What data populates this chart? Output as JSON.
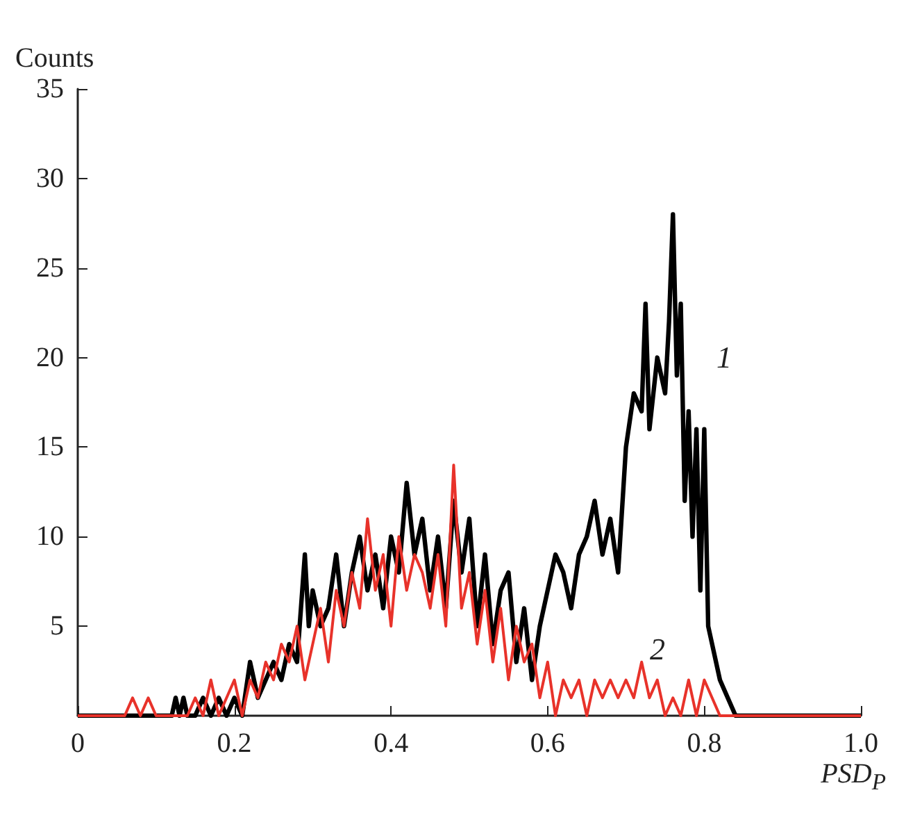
{
  "chart_data": {
    "type": "line",
    "xlabel": "PSD$_{P}$",
    "ylabel": "Counts",
    "xlim": [
      0,
      1
    ],
    "ylim": [
      0,
      35
    ],
    "xticks": [
      0,
      0.2,
      0.4,
      0.6,
      0.8,
      {
        "value": 1,
        "label": "1.0"
      }
    ],
    "yticks": [
      5,
      10,
      15,
      20,
      25,
      30,
      35
    ],
    "grid": false,
    "marker": "none",
    "line_style": "solid",
    "series": [
      {
        "color": "#000000",
        "x": [
          0,
          0.12,
          0.125,
          0.13,
          0.135,
          0.14,
          0.15,
          0.16,
          0.17,
          0.18,
          0.19,
          0.2,
          0.21,
          0.22,
          0.23,
          0.24,
          0.25,
          0.26,
          0.27,
          0.28,
          0.29,
          0.295,
          0.3,
          0.31,
          0.32,
          0.33,
          0.34,
          0.35,
          0.36,
          0.37,
          0.38,
          0.39,
          0.4,
          0.41,
          0.42,
          0.43,
          0.44,
          0.45,
          0.46,
          0.47,
          0.48,
          0.49,
          0.5,
          0.51,
          0.52,
          0.53,
          0.54,
          0.55,
          0.56,
          0.57,
          0.58,
          0.59,
          0.6,
          0.61,
          0.62,
          0.63,
          0.64,
          0.65,
          0.66,
          0.67,
          0.68,
          0.69,
          0.7,
          0.71,
          0.72,
          0.725,
          0.73,
          0.74,
          0.75,
          0.755,
          0.76,
          0.765,
          0.77,
          0.775,
          0.78,
          0.785,
          0.79,
          0.795,
          0.8,
          0.805,
          0.81,
          0.82,
          0.83,
          0.84,
          0.85,
          1.0
        ],
        "values": [
          0,
          0,
          1,
          0,
          1,
          0,
          0,
          1,
          0,
          1,
          0,
          1,
          0,
          3,
          1,
          2,
          3,
          2,
          4,
          3,
          9,
          5,
          7,
          5,
          6,
          9,
          5,
          8,
          10,
          7,
          9,
          6,
          10,
          8,
          13,
          9,
          11,
          7,
          10,
          6,
          12,
          8,
          11,
          5,
          9,
          4,
          7,
          8,
          3,
          6,
          2,
          5,
          7,
          9,
          8,
          6,
          9,
          10,
          12,
          9,
          11,
          8,
          15,
          18,
          17,
          23,
          16,
          20,
          18,
          22,
          28,
          19,
          23,
          12,
          17,
          10,
          16,
          7,
          16,
          5,
          4,
          2,
          1,
          0,
          0,
          0
        ]
      },
      {
        "color": "#e8322a",
        "x": [
          0,
          0.01,
          0.02,
          0.03,
          0.04,
          0.05,
          0.06,
          0.07,
          0.08,
          0.09,
          0.1,
          0.11,
          0.12,
          0.13,
          0.14,
          0.15,
          0.16,
          0.17,
          0.18,
          0.19,
          0.2,
          0.21,
          0.22,
          0.23,
          0.24,
          0.25,
          0.26,
          0.27,
          0.28,
          0.29,
          0.3,
          0.31,
          0.32,
          0.33,
          0.34,
          0.35,
          0.36,
          0.37,
          0.38,
          0.39,
          0.4,
          0.41,
          0.42,
          0.43,
          0.44,
          0.45,
          0.46,
          0.47,
          0.48,
          0.49,
          0.5,
          0.51,
          0.52,
          0.53,
          0.54,
          0.55,
          0.56,
          0.57,
          0.58,
          0.59,
          0.6,
          0.61,
          0.62,
          0.63,
          0.64,
          0.65,
          0.66,
          0.67,
          0.68,
          0.69,
          0.7,
          0.71,
          0.72,
          0.73,
          0.74,
          0.75,
          0.76,
          0.77,
          0.78,
          0.79,
          0.8,
          0.81,
          0.82,
          0.83,
          0.84,
          0.85,
          0.86,
          0.87,
          0.88,
          0.89,
          0.9,
          0.91,
          0.92,
          0.93,
          0.94,
          0.95,
          0.96,
          0.97,
          0.98,
          0.99,
          1.0
        ],
        "values": [
          0,
          0,
          0,
          0,
          0,
          0,
          0,
          1,
          0,
          1,
          0,
          0,
          0,
          0,
          0,
          1,
          0,
          2,
          0,
          1,
          2,
          0,
          2,
          1,
          3,
          2,
          4,
          3,
          5,
          2,
          4,
          6,
          3,
          7,
          5,
          8,
          6,
          11,
          7,
          9,
          5,
          10,
          7,
          9,
          8,
          6,
          9,
          5,
          14,
          6,
          8,
          4,
          7,
          3,
          6,
          2,
          5,
          3,
          4,
          1,
          3,
          0,
          2,
          1,
          2,
          0,
          2,
          1,
          2,
          1,
          2,
          1,
          3,
          1,
          2,
          0,
          1,
          0,
          2,
          0,
          2,
          1,
          0,
          0,
          0,
          0,
          0,
          0,
          0,
          0,
          0,
          0,
          0,
          0,
          0,
          0,
          0,
          0,
          0,
          0,
          0
        ]
      }
    ],
    "annotations": [
      "1",
      "2"
    ]
  }
}
